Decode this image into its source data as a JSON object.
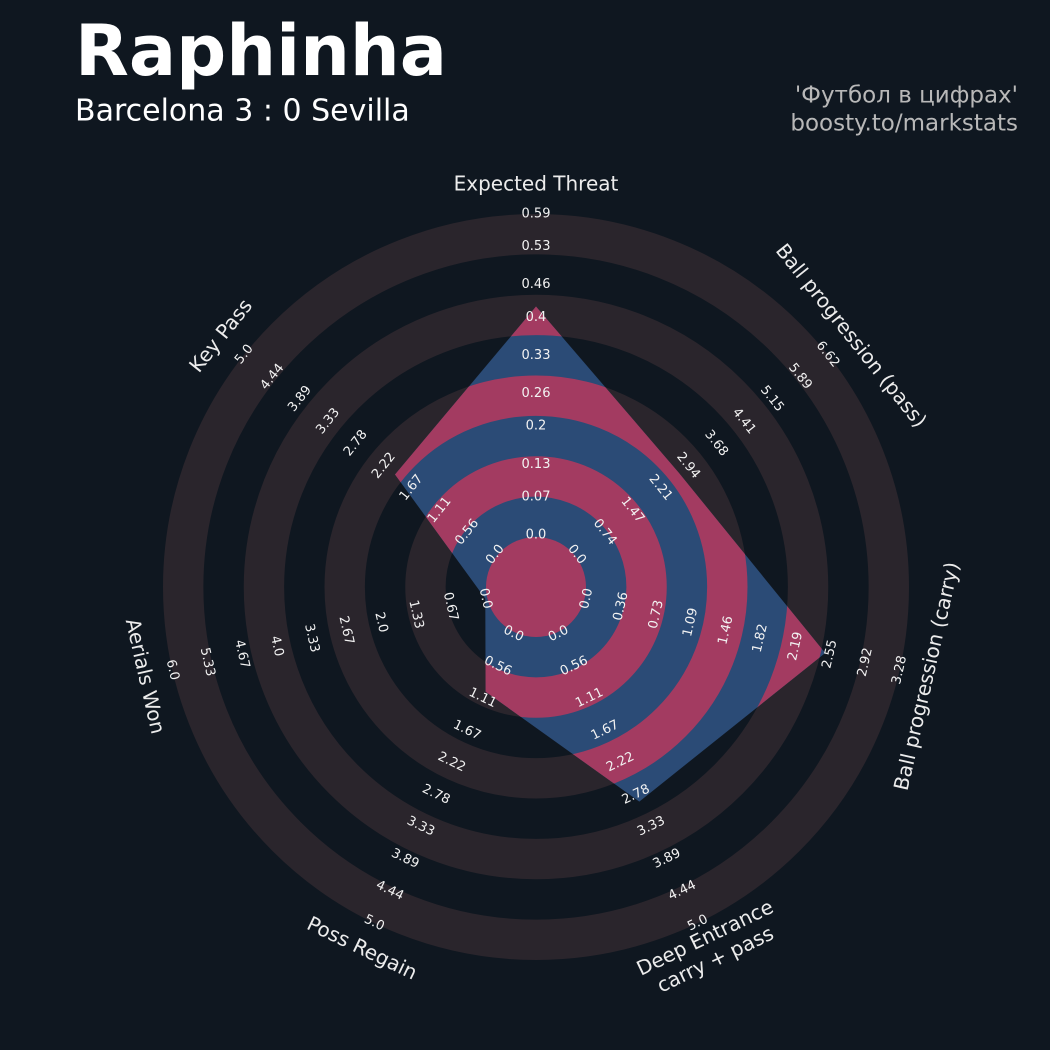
{
  "chart_data": {
    "type": "radar",
    "title": "Raphinha",
    "subtitle": "Barcelona 3 : 0 Sevilla",
    "credits": [
      "'Футбол в цифрах'",
      "boosty.to/markstats"
    ],
    "categories": [
      "Expected Threat",
      "Ball progression (pass)",
      "Ball progression (carry)",
      "Deep Entrance\ncarry + pass",
      "Poss Regain",
      "Aerials Won",
      "Key Pass"
    ],
    "values": [
      0.42,
      2.7,
      2.5,
      2.9,
      1.0,
      0.0,
      2.0
    ],
    "ranges": [
      [
        0,
        0.59
      ],
      [
        0,
        6.62
      ],
      [
        0,
        3.28
      ],
      [
        0,
        5
      ],
      [
        0,
        5
      ],
      [
        0,
        6
      ],
      [
        0,
        5
      ]
    ],
    "ticks": [
      [
        {
          "value": 0,
          "label": "0.0"
        },
        0.07,
        0.13,
        0.2,
        0.26,
        0.33,
        0.4,
        0.46,
        0.53,
        0.59
      ],
      [
        {
          "value": 0,
          "label": "0.0"
        },
        0.74,
        1.47,
        2.21,
        2.94,
        3.68,
        4.41,
        5.15,
        5.89,
        6.62
      ],
      [
        {
          "value": 0,
          "label": "0.0"
        },
        0.36,
        0.73,
        1.09,
        1.46,
        1.82,
        2.19,
        2.55,
        2.92,
        3.28
      ],
      [
        {
          "value": 0,
          "label": "0.0"
        },
        0.56,
        1.11,
        1.67,
        2.22,
        2.78,
        3.33,
        3.89,
        4.44,
        {
          "value": 5,
          "label": "5.0"
        }
      ],
      [
        {
          "value": 0,
          "label": "0.0"
        },
        0.56,
        1.11,
        1.67,
        2.22,
        2.78,
        3.33,
        3.89,
        4.44,
        {
          "value": 5,
          "label": "5.0"
        }
      ],
      [
        {
          "value": 0,
          "label": "0.0"
        },
        0.67,
        1.33,
        {
          "value": 2,
          "label": "2.0"
        },
        2.67,
        3.33,
        {
          "value": 4,
          "label": "4.0"
        },
        4.67,
        5.33,
        {
          "value": 6,
          "label": "6.0"
        }
      ],
      [
        {
          "value": 0,
          "label": "0.0"
        },
        0.56,
        1.11,
        1.67,
        2.22,
        2.78,
        3.33,
        3.89,
        4.44,
        {
          "value": 5,
          "label": "5.0"
        }
      ]
    ],
    "colors": {
      "background": "#0f1720",
      "rings": "#2a252c",
      "polygon": "#2b4b76",
      "polygon_rings": "#a33b61"
    }
  }
}
